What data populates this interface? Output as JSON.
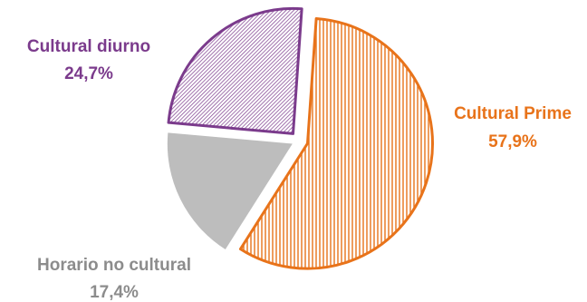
{
  "chart_data": {
    "type": "pie",
    "slices": [
      {
        "label": "Cultural Prime",
        "value_text": "57,9%",
        "value": 57.9,
        "color": "#E8731A",
        "fill": "vertical-lines"
      },
      {
        "label": "Horario no cultural",
        "value_text": "17,4%",
        "value": 17.4,
        "color": "#BDBDBD",
        "fill": "solid"
      },
      {
        "label": "Cultural diurno",
        "value_text": "24,7%",
        "value": 24.7,
        "color": "#7B3B8C",
        "fill": "dense-hatch"
      }
    ],
    "exploded": true
  }
}
